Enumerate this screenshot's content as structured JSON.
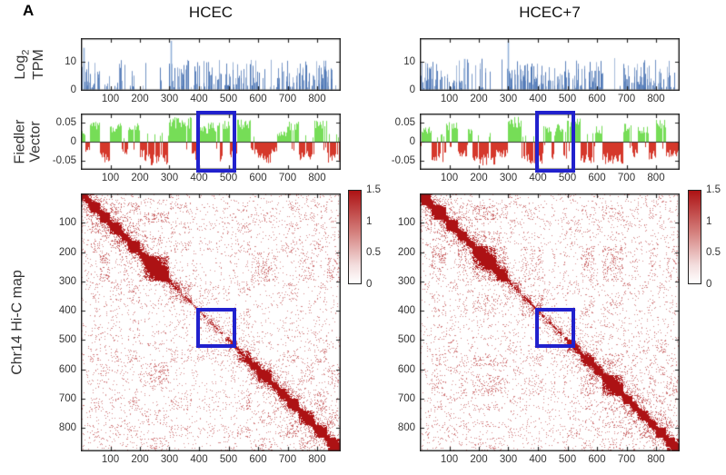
{
  "figure": {
    "panel_label": "A",
    "columns": [
      {
        "id": "hcec",
        "title": "HCEC"
      },
      {
        "id": "hcec7",
        "title": "HCEC+7"
      }
    ],
    "row_labels": {
      "tpm": {
        "pre": "Log",
        "sub": "2",
        "line2": "TPM"
      },
      "fiedler": {
        "line1": "Fiedler",
        "line2": "Vector"
      },
      "hic": "Chr14 Hi-C map"
    },
    "colors": {
      "tpm_bar": "#4a74b4",
      "tpm_bar_light": "#8fb0d9",
      "fiedler_positive": "#76dd57",
      "fiedler_negative": "#d5382b",
      "heatmap_low": "#ffffff",
      "heatmap_high": "#ad1214",
      "highlight_box": "#2121cd",
      "axis": "#222222"
    }
  },
  "chart_data": [
    {
      "id": "hcec_tpm",
      "type": "bar",
      "panel": "HCEC",
      "ylabel": "Log2 TPM",
      "x_range": [
        0,
        880
      ],
      "y_range": [
        0,
        18
      ],
      "x_ticks": [
        100,
        200,
        300,
        400,
        500,
        600,
        700,
        800
      ],
      "y_ticks": [
        0,
        10
      ],
      "y_tick_labels": [
        "0",
        "10"
      ],
      "seed": 1101,
      "segments": [
        [
          0,
          60,
          0.8
        ],
        [
          60,
          110,
          0.35
        ],
        [
          110,
          185,
          0.6
        ],
        [
          185,
          240,
          0.25
        ],
        [
          240,
          300,
          0.15
        ],
        [
          300,
          312,
          1.0
        ],
        [
          312,
          420,
          0.75
        ],
        [
          420,
          520,
          0.65
        ],
        [
          520,
          600,
          0.8
        ],
        [
          600,
          650,
          0.3
        ],
        [
          650,
          700,
          0.45
        ],
        [
          700,
          780,
          0.7
        ],
        [
          780,
          860,
          0.75
        ],
        [
          860,
          880,
          0.2
        ]
      ],
      "peaks": [
        {
          "x": 8,
          "v": 15
        },
        {
          "x": 305,
          "v": 17.5
        }
      ]
    },
    {
      "id": "hcec_fiedler",
      "type": "bar",
      "panel": "HCEC",
      "ylabel": "Fiedler Vector",
      "x_range": [
        0,
        880
      ],
      "y_range": [
        -0.075,
        0.075
      ],
      "x_ticks": [
        100,
        200,
        300,
        400,
        500,
        600,
        700,
        800
      ],
      "y_ticks": [
        0.05,
        0,
        -0.05
      ],
      "y_tick_labels": [
        "0.05",
        "0",
        "-0.05"
      ],
      "seed": 1201,
      "highlight_region": [
        398,
        520
      ],
      "segments": [
        [
          0,
          15,
          1,
          0.5
        ],
        [
          15,
          30,
          -1,
          0.4
        ],
        [
          30,
          65,
          1,
          0.8
        ],
        [
          65,
          100,
          -1,
          0.8
        ],
        [
          100,
          140,
          1,
          0.7
        ],
        [
          140,
          160,
          -1,
          0.5
        ],
        [
          160,
          200,
          1,
          0.8
        ],
        [
          200,
          215,
          -1,
          0.6
        ],
        [
          215,
          300,
          -1,
          0.9
        ],
        [
          300,
          375,
          1,
          0.95
        ],
        [
          375,
          395,
          -1,
          0.7
        ],
        [
          395,
          430,
          1,
          0.6
        ],
        [
          430,
          470,
          1,
          0.75
        ],
        [
          470,
          480,
          -1,
          0.8
        ],
        [
          480,
          505,
          1,
          0.8
        ],
        [
          505,
          530,
          -1,
          0.6
        ],
        [
          530,
          575,
          1,
          0.9
        ],
        [
          575,
          600,
          -1,
          0.5
        ],
        [
          600,
          645,
          -1,
          0.85
        ],
        [
          645,
          665,
          -1,
          0.4
        ],
        [
          665,
          700,
          1,
          0.4
        ],
        [
          700,
          740,
          1,
          0.85
        ],
        [
          740,
          790,
          -1,
          0.7
        ],
        [
          790,
          835,
          1,
          0.9
        ],
        [
          835,
          880,
          -1,
          0.8
        ]
      ]
    },
    {
      "id": "hcec_hic",
      "type": "heatmap",
      "panel": "HCEC",
      "ylabel": "Chr14 Hi-C map",
      "x_range": [
        0,
        880
      ],
      "y_range": [
        0,
        880
      ],
      "x_ticks": [
        100,
        200,
        300,
        400,
        500,
        600,
        700,
        800
      ],
      "y_ticks": [
        100,
        200,
        300,
        400,
        500,
        600,
        700,
        800
      ],
      "color_range": [
        0,
        1.5
      ],
      "colorbar": {
        "ticks": [
          "1.5",
          "1",
          "0.5",
          "0"
        ],
        "values": [
          1.5,
          1,
          0.5,
          0
        ]
      },
      "seed": 1301,
      "highlight_region": [
        398,
        520
      ],
      "coverage": [
        [
          0,
          300,
          1.0
        ],
        [
          300,
          330,
          0.6
        ],
        [
          330,
          500,
          0.48
        ],
        [
          500,
          560,
          0.62
        ],
        [
          560,
          880,
          0.95
        ]
      ]
    },
    {
      "id": "hcec7_tpm",
      "type": "bar",
      "panel": "HCEC+7",
      "ylabel": "Log2 TPM",
      "x_range": [
        0,
        880
      ],
      "y_range": [
        0,
        18
      ],
      "x_ticks": [
        100,
        200,
        300,
        400,
        500,
        600,
        700,
        800
      ],
      "y_ticks": [
        0,
        10
      ],
      "y_tick_labels": [
        "0",
        "10"
      ],
      "seed": 2101,
      "segments": [
        [
          0,
          70,
          0.75
        ],
        [
          70,
          110,
          0.3
        ],
        [
          110,
          180,
          0.55
        ],
        [
          180,
          250,
          0.3
        ],
        [
          250,
          295,
          0.2
        ],
        [
          295,
          312,
          1.0
        ],
        [
          312,
          430,
          0.7
        ],
        [
          430,
          530,
          0.65
        ],
        [
          530,
          620,
          0.75
        ],
        [
          620,
          660,
          0.25
        ],
        [
          660,
          700,
          0.4
        ],
        [
          700,
          790,
          0.7
        ],
        [
          790,
          865,
          0.75
        ],
        [
          865,
          880,
          0.3
        ]
      ],
      "peaks": [
        {
          "x": 150,
          "v": 11
        },
        {
          "x": 300,
          "v": 17.5
        }
      ]
    },
    {
      "id": "hcec7_fiedler",
      "type": "bar",
      "panel": "HCEC+7",
      "ylabel": "Fiedler Vector",
      "x_range": [
        0,
        880
      ],
      "y_range": [
        -0.075,
        0.075
      ],
      "x_ticks": [
        100,
        200,
        300,
        400,
        500,
        600,
        700,
        800
      ],
      "y_ticks": [
        0.05,
        0,
        -0.05
      ],
      "y_tick_labels": [
        "0.05",
        "0",
        "-0.05"
      ],
      "seed": 2201,
      "highlight_region": [
        398,
        520
      ],
      "segments": [
        [
          0,
          40,
          1,
          0.6
        ],
        [
          40,
          90,
          -1,
          0.8
        ],
        [
          90,
          130,
          1,
          0.75
        ],
        [
          130,
          160,
          -1,
          0.6
        ],
        [
          160,
          180,
          1,
          0.5
        ],
        [
          180,
          260,
          -1,
          0.9
        ],
        [
          260,
          300,
          -1,
          0.6
        ],
        [
          300,
          345,
          1,
          0.95
        ],
        [
          345,
          420,
          -1,
          0.85
        ],
        [
          420,
          445,
          1,
          0.6
        ],
        [
          445,
          460,
          -1,
          0.9
        ],
        [
          460,
          485,
          1,
          0.7
        ],
        [
          485,
          500,
          -1,
          0.95
        ],
        [
          500,
          545,
          1,
          0.9
        ],
        [
          545,
          590,
          -1,
          0.85
        ],
        [
          590,
          620,
          1,
          0.6
        ],
        [
          620,
          690,
          -1,
          0.85
        ],
        [
          690,
          720,
          1,
          0.7
        ],
        [
          720,
          740,
          -1,
          0.6
        ],
        [
          740,
          775,
          1,
          0.6
        ],
        [
          775,
          800,
          -1,
          0.7
        ],
        [
          800,
          835,
          1,
          0.95
        ],
        [
          835,
          880,
          -1,
          0.6
        ]
      ]
    },
    {
      "id": "hcec7_hic",
      "type": "heatmap",
      "panel": "HCEC+7",
      "ylabel": "Chr14 Hi-C map",
      "x_range": [
        0,
        880
      ],
      "y_range": [
        0,
        880
      ],
      "x_ticks": [
        100,
        200,
        300,
        400,
        500,
        600,
        700,
        800
      ],
      "y_ticks": [
        100,
        200,
        300,
        400,
        500,
        600,
        700,
        800
      ],
      "color_range": [
        0,
        1.5
      ],
      "colorbar": {
        "ticks": [
          "1.5",
          "1",
          "0.5",
          "0"
        ],
        "values": [
          1.5,
          1,
          0.5,
          0
        ]
      },
      "seed": 2301,
      "highlight_region": [
        398,
        520
      ],
      "coverage": [
        [
          0,
          300,
          1.0
        ],
        [
          300,
          500,
          0.55
        ],
        [
          500,
          560,
          0.7
        ],
        [
          560,
          880,
          0.95
        ]
      ]
    }
  ]
}
